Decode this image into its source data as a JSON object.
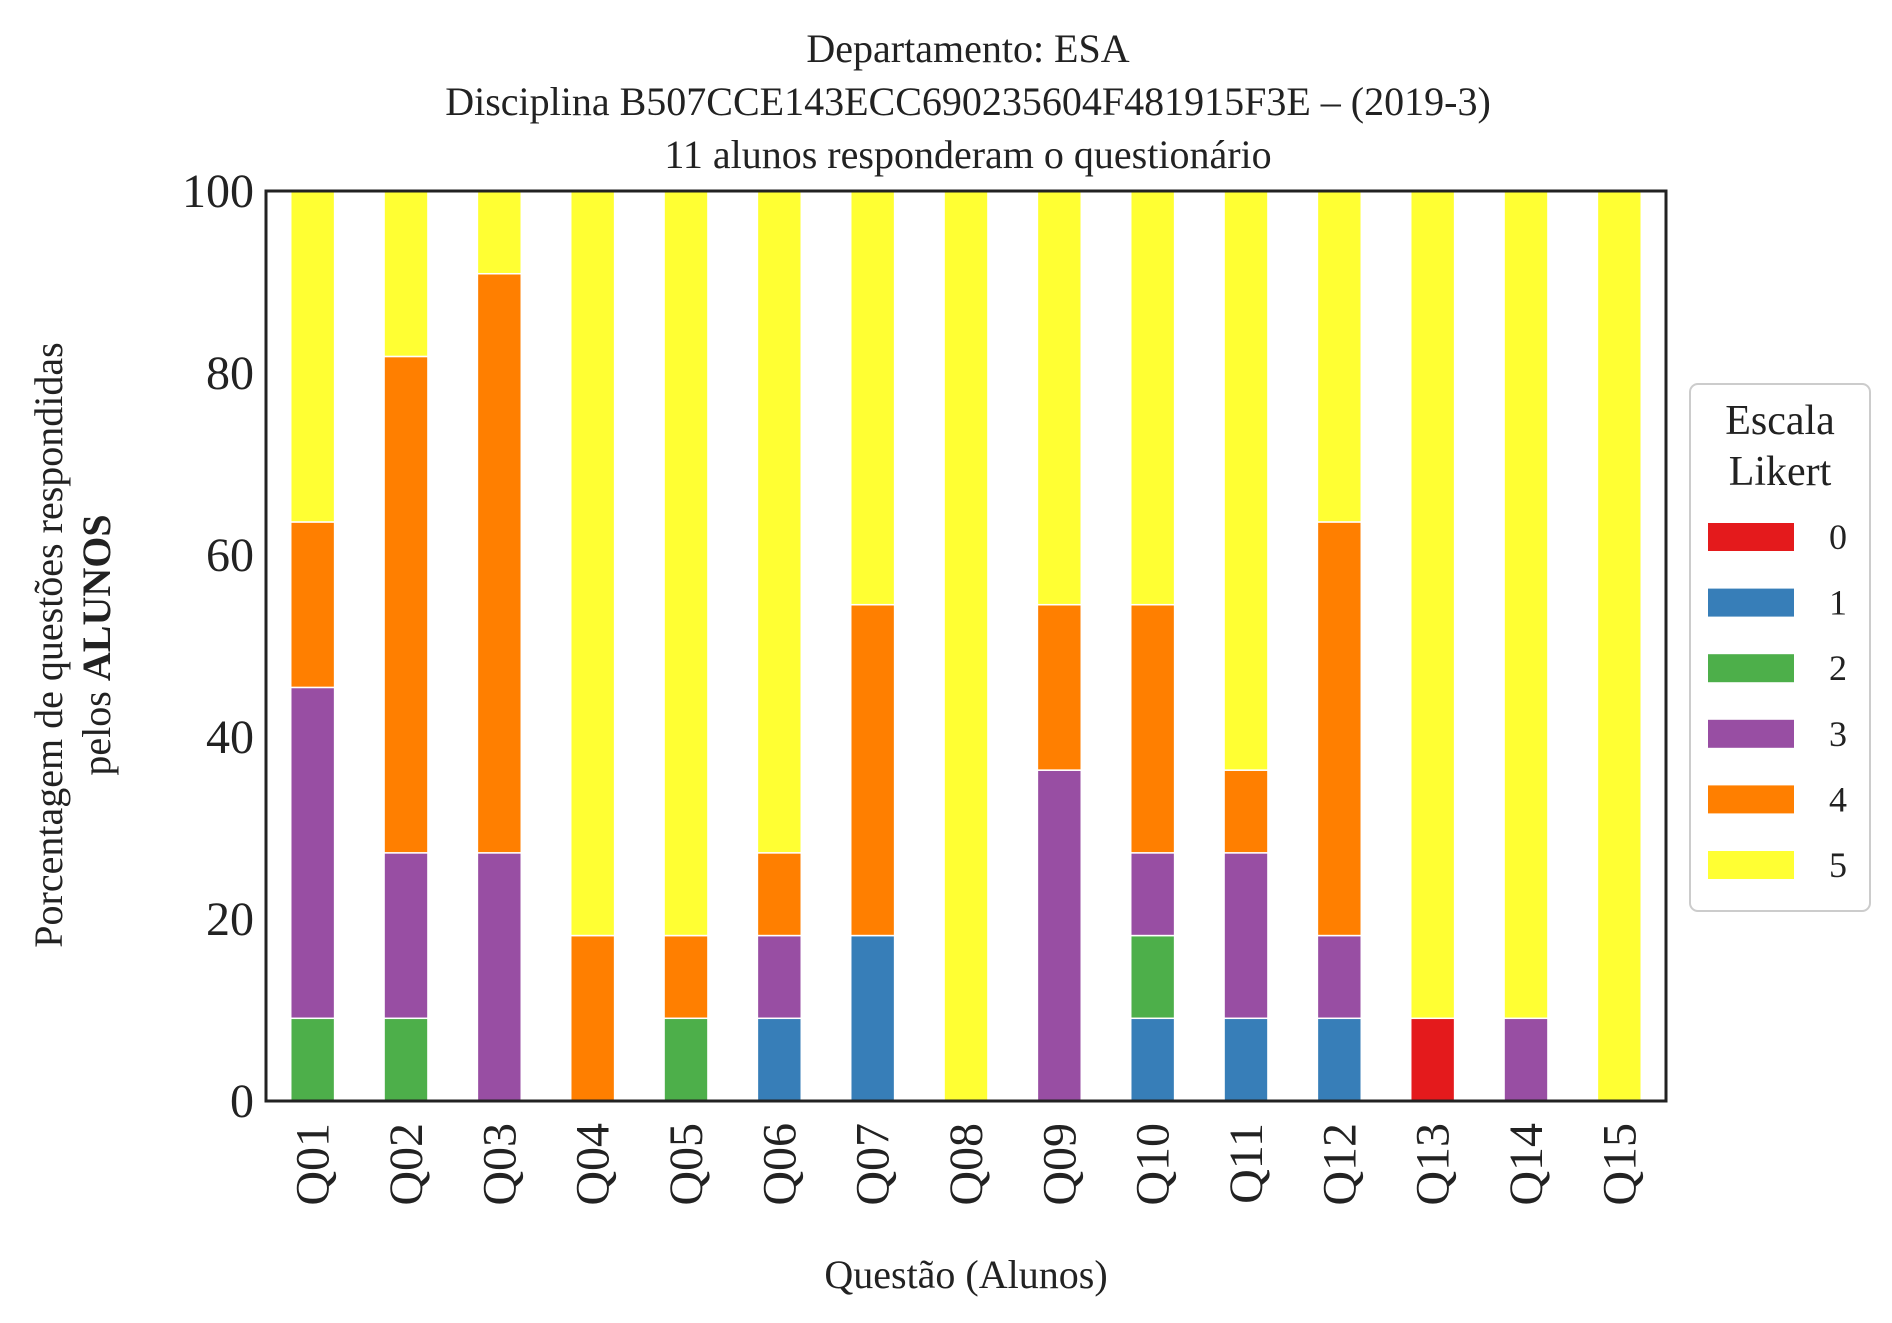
{
  "chart_data": {
    "type": "bar",
    "stacked": true,
    "title_lines": [
      "Departamento: ESA",
      "Disciplina B507CCE143ECC690235604F481915F3E – (2019-3)",
      "11 alunos responderam o questionário"
    ],
    "xlabel": "Questão (Alunos)",
    "ylabel_line1": "Porcentagem de questões respondidas",
    "ylabel_line2_prefix": "pelos ",
    "ylabel_line2_bold": "ALUNOS",
    "ylim": [
      0,
      100
    ],
    "yticks": [
      "0",
      "20",
      "40",
      "60",
      "80",
      "100"
    ],
    "grid": false,
    "legend": {
      "title_line1": "Escala",
      "title_line2": "Likert",
      "placement": "right"
    },
    "categories": [
      "Q01",
      "Q02",
      "Q03",
      "Q04",
      "Q05",
      "Q06",
      "Q07",
      "Q08",
      "Q09",
      "Q10",
      "Q11",
      "Q12",
      "Q13",
      "Q14",
      "Q15"
    ],
    "series": [
      {
        "name": "0",
        "color": "#e41a1c",
        "values": [
          0,
          0,
          0,
          0,
          0,
          0,
          0,
          0,
          0,
          0,
          0,
          0,
          9.09,
          0,
          0
        ]
      },
      {
        "name": "1",
        "color": "#377eb8",
        "values": [
          0,
          0,
          0,
          0,
          0,
          9.09,
          18.18,
          0,
          0,
          9.09,
          9.09,
          9.09,
          0,
          0,
          0
        ]
      },
      {
        "name": "2",
        "color": "#4daf4a",
        "values": [
          9.09,
          9.09,
          0,
          0,
          9.09,
          0,
          0,
          0,
          0,
          9.09,
          0,
          0,
          0,
          0,
          0
        ]
      },
      {
        "name": "3",
        "color": "#984ea3",
        "values": [
          36.36,
          18.18,
          27.27,
          0,
          0,
          9.09,
          0,
          0,
          36.36,
          9.09,
          18.18,
          9.09,
          0,
          9.09,
          0
        ]
      },
      {
        "name": "4",
        "color": "#ff7f00",
        "values": [
          18.18,
          54.55,
          63.64,
          18.18,
          9.09,
          9.09,
          36.36,
          0,
          18.18,
          27.27,
          9.09,
          45.45,
          0,
          0,
          0
        ]
      },
      {
        "name": "5",
        "color": "#ffff33",
        "values": [
          36.36,
          18.18,
          9.09,
          81.82,
          81.82,
          72.73,
          45.45,
          100,
          45.45,
          45.45,
          63.64,
          36.36,
          90.91,
          90.91,
          100
        ]
      }
    ]
  }
}
